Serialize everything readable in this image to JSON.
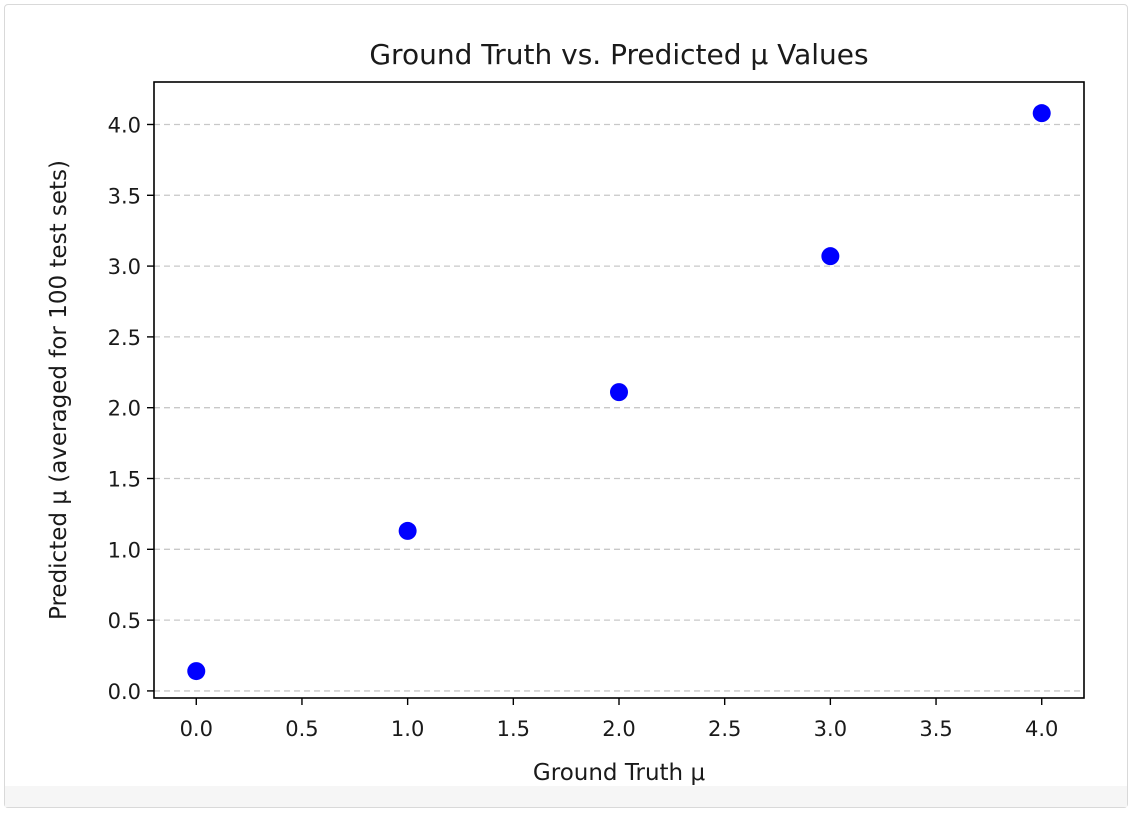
{
  "chart_data": {
    "type": "scatter",
    "title": "Ground Truth vs. Predicted μ Values",
    "xlabel": "Ground Truth μ",
    "ylabel": "Predicted μ (averaged for 100 test sets)",
    "x": [
      0.0,
      1.0,
      2.0,
      3.0,
      4.0
    ],
    "y": [
      0.14,
      1.13,
      2.11,
      3.07,
      4.08
    ],
    "xlim": [
      -0.2,
      4.2
    ],
    "ylim": [
      -0.05,
      4.3
    ],
    "xticks": [
      "0.0",
      "0.5",
      "1.0",
      "1.5",
      "2.0",
      "2.5",
      "3.0",
      "3.5",
      "4.0"
    ],
    "yticks": [
      "0.0",
      "0.5",
      "1.0",
      "1.5",
      "2.0",
      "2.5",
      "3.0",
      "3.5",
      "4.0"
    ],
    "grid": "horizontal dashed",
    "marker_color": "#0000ff",
    "grid_color": "#c8c8c8"
  }
}
